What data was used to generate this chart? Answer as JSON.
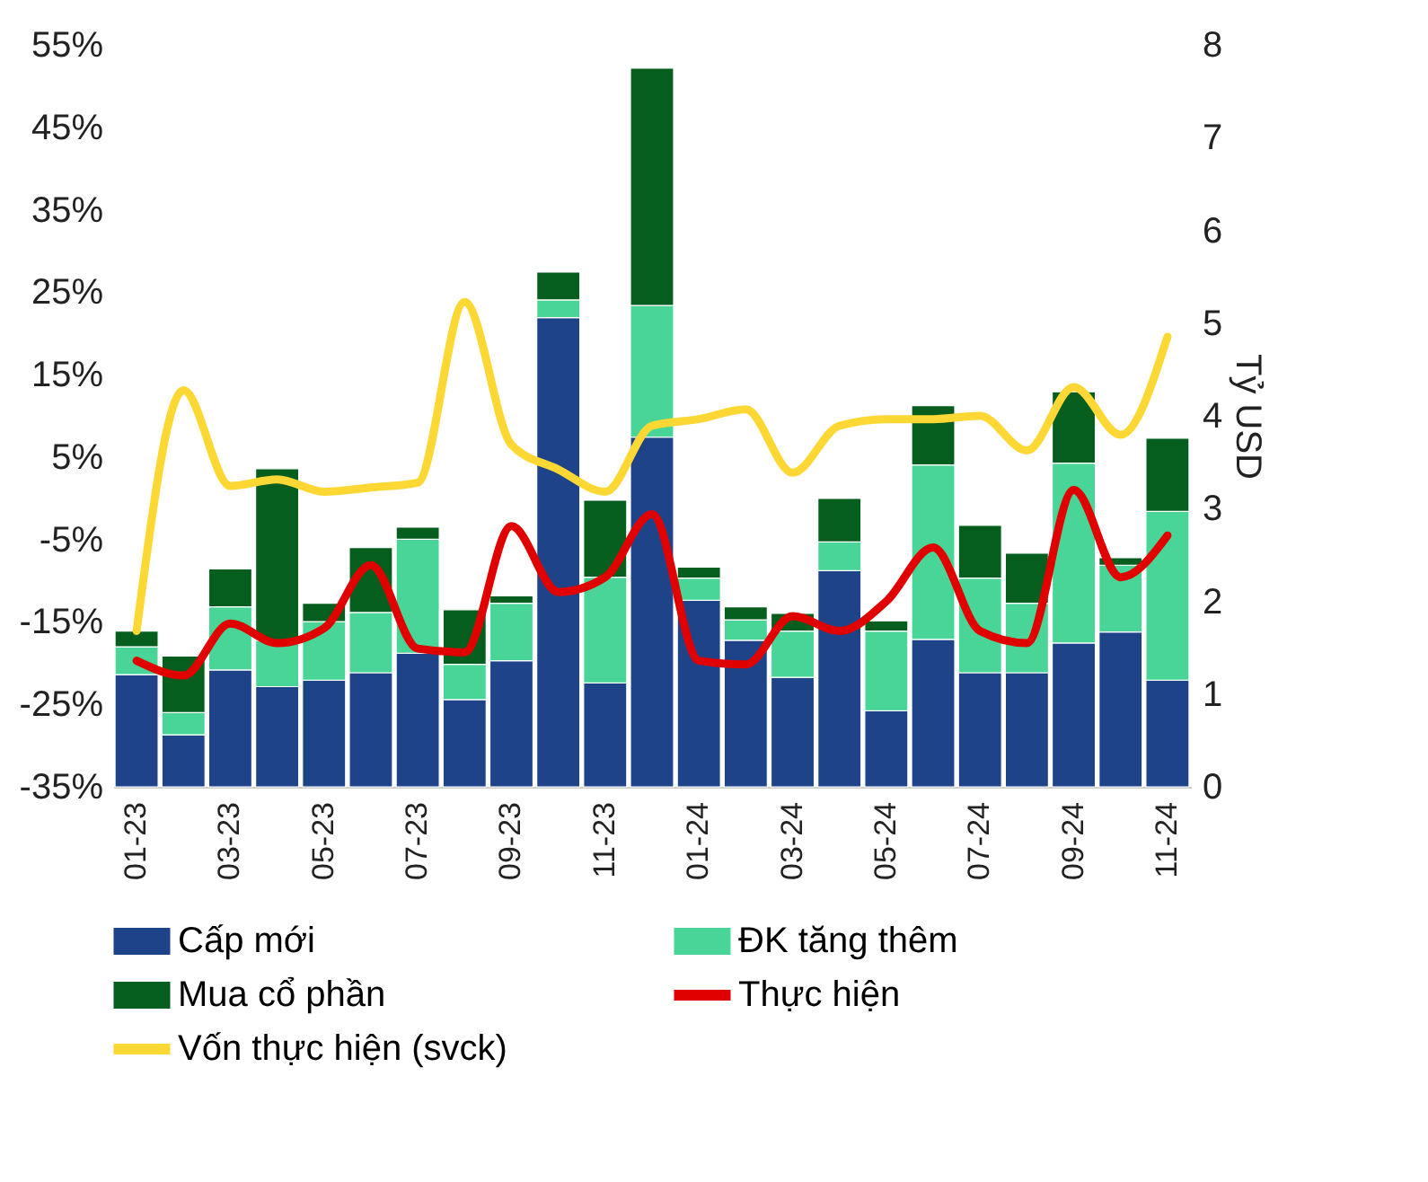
{
  "chart_data": {
    "type": "bar",
    "stacked": true,
    "ylabel": null,
    "y2label": "Tỷ USD",
    "legend": "bottom",
    "categories": [
      "01-23",
      null,
      "03-23",
      null,
      "05-23",
      null,
      "07-23",
      null,
      "09-23",
      null,
      "11-23",
      null,
      "01-24",
      null,
      "03-24",
      null,
      "05-24",
      null,
      "07-24",
      null,
      "09-24",
      null,
      "11-24"
    ],
    "ylim": [
      -35,
      55
    ],
    "yticks": [
      {
        "value": -35,
        "label": "-35%"
      },
      {
        "value": -25,
        "label": "-25%"
      },
      {
        "value": -15,
        "label": "-15%"
      },
      {
        "value": -5,
        "label": "-5%"
      },
      {
        "value": 5,
        "label": "5%"
      },
      {
        "value": 15,
        "label": "15%"
      },
      {
        "value": 25,
        "label": "25%"
      },
      {
        "value": 35,
        "label": "35%"
      },
      {
        "value": 45,
        "label": "45%"
      },
      {
        "value": 55,
        "label": "55%"
      }
    ],
    "y2lim": [
      0,
      8
    ],
    "y2ticks": [
      0,
      1,
      2,
      3,
      4,
      5,
      6,
      7,
      8
    ],
    "series": [
      {
        "name": "Cấp mới",
        "axis": "y2",
        "color": "#1f4389",
        "values": [
          1.21,
          0.56,
          1.26,
          1.08,
          1.15,
          1.23,
          1.44,
          0.94,
          1.36,
          5.06,
          1.12,
          3.77,
          2.01,
          1.58,
          1.18,
          2.33,
          0.82,
          1.59,
          1.23,
          1.23,
          1.55,
          1.67,
          1.15
        ]
      },
      {
        "name": "ĐK tăng thêm",
        "axis": "y2",
        "color": "#48d597",
        "values": [
          0.3,
          0.24,
          0.68,
          0.5,
          0.63,
          0.65,
          1.23,
          0.38,
          0.62,
          0.19,
          1.14,
          1.42,
          0.24,
          0.22,
          0.5,
          0.31,
          0.86,
          1.88,
          1.02,
          0.75,
          1.94,
          0.72,
          1.82
        ]
      },
      {
        "name": "Mua cổ phần",
        "axis": "y2",
        "color": "#055e1e",
        "values": [
          0.17,
          0.61,
          0.41,
          1.85,
          0.2,
          0.7,
          0.13,
          0.59,
          0.08,
          0.3,
          0.83,
          2.56,
          0.12,
          0.14,
          0.19,
          0.47,
          0.11,
          0.64,
          0.57,
          0.54,
          0.77,
          0.08,
          0.79
        ]
      },
      {
        "name": "Thực hiện",
        "type": "line",
        "axis": "y2",
        "color": "#e00000",
        "values": [
          1.36,
          1.2,
          1.76,
          1.55,
          1.71,
          2.39,
          1.49,
          1.45,
          2.81,
          2.1,
          2.26,
          2.94,
          1.36,
          1.32,
          1.84,
          1.68,
          2.0,
          2.58,
          1.68,
          1.55,
          3.2,
          2.26,
          2.71
        ]
      },
      {
        "name": "Vốn thực hiện (svck)",
        "type": "line",
        "axis": "y",
        "color": "#fdd835",
        "values": [
          -16.1,
          13.1,
          1.5,
          2.3,
          0.8,
          1.3,
          1.9,
          23.8,
          6.5,
          3.5,
          0.8,
          8.8,
          9.6,
          10.8,
          3.1,
          8.8,
          9.6,
          9.6,
          10.0,
          5.8,
          13.5,
          7.7,
          19.6
        ]
      }
    ]
  }
}
